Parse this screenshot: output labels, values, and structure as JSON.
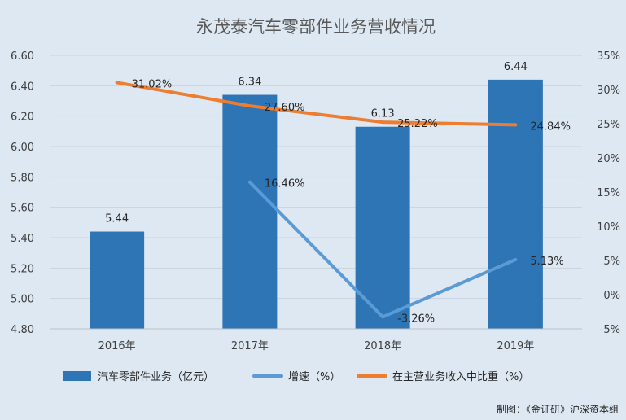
{
  "chart_data": {
    "type": "bar",
    "title": "永茂泰汽车零部件业务营收情况",
    "categories": [
      "2016年",
      "2017年",
      "2018年",
      "2019年"
    ],
    "series": [
      {
        "name": "汽车零部件业务（亿元）",
        "type": "bar",
        "axis": "left",
        "values": [
          5.44,
          6.34,
          6.13,
          6.44
        ],
        "labels": [
          "5.44",
          "6.34",
          "6.13",
          "6.44"
        ]
      },
      {
        "name": "增速（%）",
        "type": "line",
        "axis": "right",
        "values": [
          null,
          16.46,
          -3.26,
          5.13
        ],
        "labels": [
          null,
          "16.46%",
          "-3.26%",
          "5.13%"
        ]
      },
      {
        "name": "在主营业务收入中比重（%）",
        "type": "line",
        "axis": "right",
        "values": [
          31.02,
          27.6,
          25.22,
          24.84
        ],
        "labels": [
          "31.02%",
          "27.60%",
          "25.22%",
          "24.84%"
        ]
      }
    ],
    "y_left": {
      "min": 4.8,
      "max": 6.6,
      "step": 0.2,
      "ticks": [
        "4.80",
        "5.00",
        "5.20",
        "5.40",
        "5.60",
        "5.80",
        "6.00",
        "6.20",
        "6.40",
        "6.60"
      ]
    },
    "y_right": {
      "min": -5,
      "max": 35,
      "step": 5,
      "ticks": [
        "-5%",
        "0%",
        "5%",
        "10%",
        "15%",
        "20%",
        "25%",
        "30%",
        "35%"
      ]
    },
    "grid": true,
    "legend_position": "bottom",
    "colors": {
      "bar": "#2e75b6",
      "growth": "#5b9bd5",
      "share": "#ed7d31",
      "grid": "#c9d3de"
    },
    "credit": "制图：《金证研》沪深资本组"
  }
}
